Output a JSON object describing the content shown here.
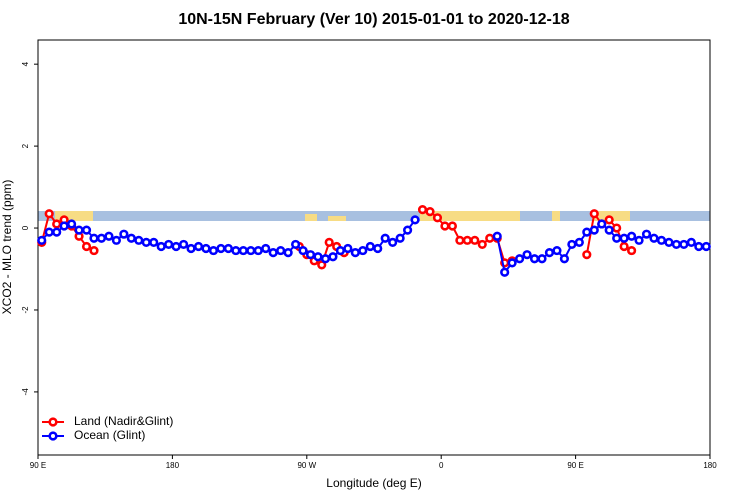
{
  "chart_data": {
    "type": "line",
    "title": "10N-15N February (Ver 10)   2015-01-01 to 2020-12-18",
    "xlabel": "Longitude (deg E)",
    "ylabel": "XCO2 - MLO trend (ppm)",
    "xlim": [
      90,
      540
    ],
    "ylim": [
      -5.54,
      4.59
    ],
    "xticks": [
      {
        "value": 90,
        "label": "90 E"
      },
      180,
      {
        "value": 270,
        "label": "90 W"
      },
      {
        "value": 360,
        "label": "0"
      },
      {
        "value": 450,
        "label": "90 E"
      },
      {
        "value": 540,
        "label": "180"
      }
    ],
    "yticks": [
      -4,
      -2,
      0,
      2,
      4
    ],
    "legend": "bottom-left",
    "series": [
      {
        "name": "Land (Nadir&Glint)",
        "color": "#ff0000",
        "x": [
          92.5,
          97.5,
          102.5,
          107.5,
          112.5,
          117.5,
          122.5,
          127.5,
          200,
          265,
          270,
          275,
          280,
          285,
          290,
          295,
          320,
          347.5,
          352.5,
          357.5,
          362.5,
          367.5,
          372.5,
          377.5,
          382.5,
          387.5,
          392.5,
          397.5,
          402.5,
          407.5,
          430,
          457.5,
          462.5,
          467.5,
          472.5,
          477.5,
          482.5,
          487.5
        ],
        "values": [
          -0.35,
          0.35,
          0.1,
          0.2,
          0.05,
          -0.2,
          -0.45,
          -0.55,
          null,
          -0.45,
          -0.65,
          -0.8,
          -0.9,
          -0.35,
          -0.45,
          -0.6,
          null,
          0.45,
          0.4,
          0.25,
          0.05,
          0.05,
          -0.3,
          -0.3,
          -0.3,
          -0.4,
          -0.25,
          -0.25,
          -0.85,
          -0.8,
          null,
          -0.65,
          0.35,
          0.1,
          0.2,
          0,
          -0.45,
          -0.55
        ]
      },
      {
        "name": "Ocean (Glint)",
        "color": "#0000ff",
        "x": [
          92.5,
          97.5,
          102.5,
          107.5,
          112.5,
          117.5,
          122.5,
          127.5,
          132.5,
          137.5,
          142.5,
          147.5,
          152.5,
          157.5,
          162.5,
          167.5,
          172.5,
          177.5,
          182.5,
          187.5,
          192.5,
          197.5,
          202.5,
          207.5,
          212.5,
          217.5,
          222.5,
          227.5,
          232.5,
          237.5,
          242.5,
          247.5,
          252.5,
          257.5,
          262.5,
          267.5,
          272.5,
          277.5,
          282.5,
          287.5,
          292.5,
          297.5,
          302.5,
          307.5,
          312.5,
          317.5,
          322.5,
          327.5,
          332.5,
          337.5,
          342.5,
          370,
          397.5,
          402.5,
          407.5,
          412.5,
          417.5,
          422.5,
          427.5,
          432.5,
          437.5,
          442.5,
          447.5,
          452.5,
          457.5,
          462.5,
          467.5,
          472.5,
          477.5,
          482.5,
          487.5,
          492.5,
          497.5,
          502.5,
          507.5,
          512.5,
          517.5,
          522.5,
          527.5,
          532.5,
          537.5
        ],
        "values": [
          -0.3,
          -0.1,
          -0.1,
          0.05,
          0.1,
          -0.05,
          -0.05,
          -0.25,
          -0.25,
          -0.2,
          -0.3,
          -0.15,
          -0.25,
          -0.3,
          -0.35,
          -0.35,
          -0.45,
          -0.4,
          -0.45,
          -0.4,
          -0.5,
          -0.45,
          -0.5,
          -0.55,
          -0.5,
          -0.5,
          -0.55,
          -0.55,
          -0.55,
          -0.55,
          -0.5,
          -0.6,
          -0.55,
          -0.6,
          -0.4,
          -0.55,
          -0.65,
          -0.7,
          -0.75,
          -0.7,
          -0.55,
          -0.5,
          -0.6,
          -0.55,
          -0.45,
          -0.5,
          -0.25,
          -0.35,
          -0.25,
          -0.05,
          0.2,
          null,
          -0.2,
          -1.08,
          -0.85,
          -0.75,
          -0.65,
          -0.75,
          -0.75,
          -0.6,
          -0.55,
          -0.75,
          -0.4,
          -0.35,
          -0.1,
          -0.05,
          0.1,
          -0.05,
          -0.25,
          -0.25,
          -0.2,
          -0.3,
          -0.15,
          -0.25,
          -0.3,
          -0.35,
          -0.4,
          -0.4,
          -0.35,
          -0.45,
          -0.45
        ]
      }
    ]
  }
}
